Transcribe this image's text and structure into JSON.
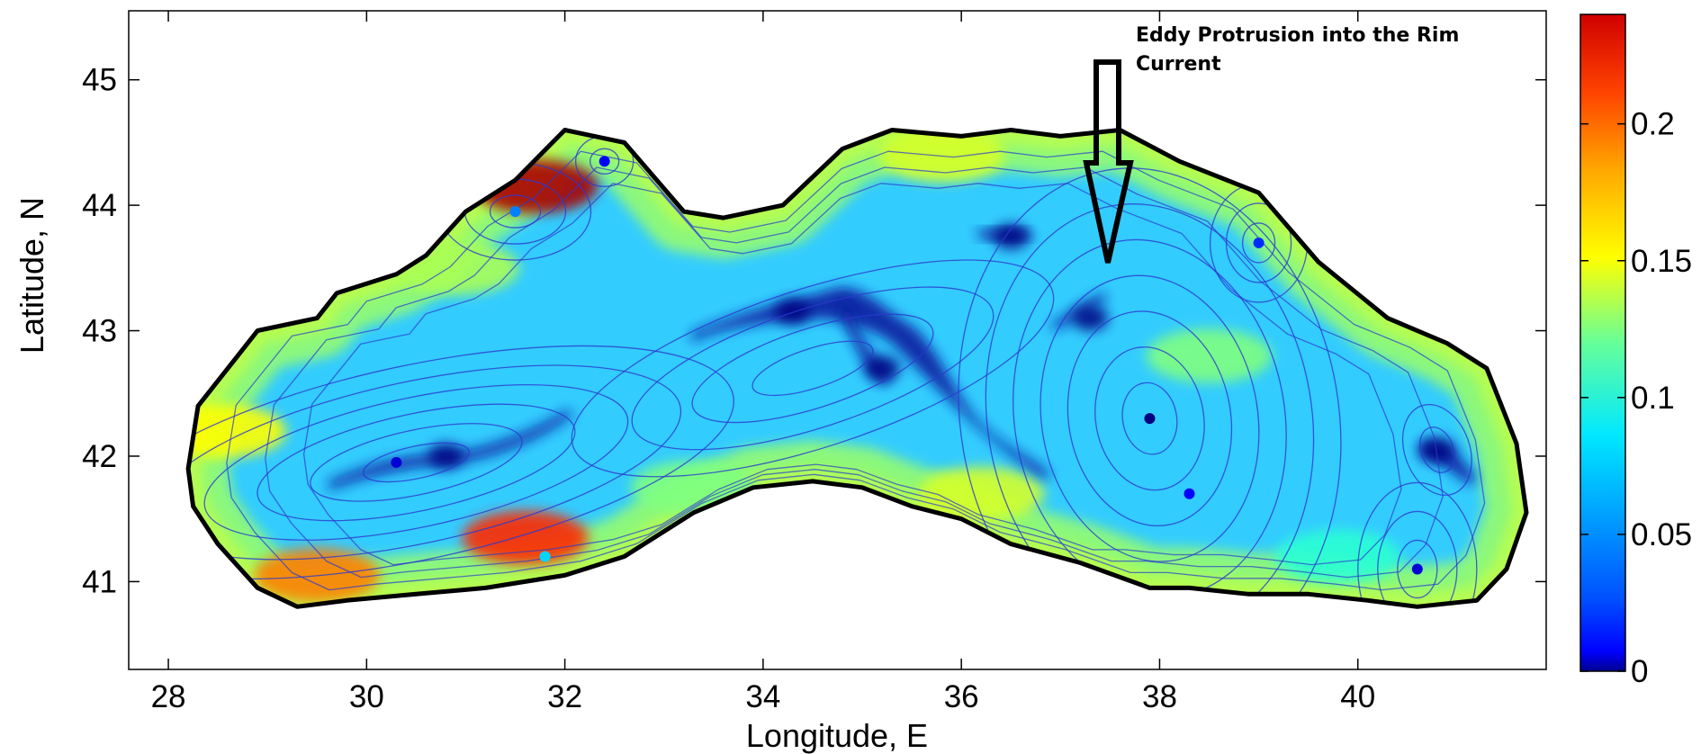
{
  "chart_data": {
    "type": "heatmap",
    "title": "",
    "xlabel": "Longitude, E",
    "ylabel": "Latitude, N",
    "xlim": [
      27.6,
      41.9
    ],
    "ylim": [
      40.3,
      45.55
    ],
    "xticks": [
      28,
      30,
      32,
      34,
      36,
      38,
      40
    ],
    "yticks": [
      41,
      42,
      43,
      44,
      45
    ],
    "xtick_labels": [
      "28",
      "30",
      "32",
      "34",
      "36",
      "38",
      "40"
    ],
    "ytick_labels": [
      "41",
      "42",
      "43",
      "44",
      "45"
    ],
    "colorbar": {
      "range": [
        0,
        0.24
      ],
      "ticks": [
        0,
        0.05,
        0.1,
        0.15,
        0.2
      ],
      "tick_labels": [
        "0",
        "0.05",
        "0.1",
        "0.15",
        "0.2"
      ],
      "colormap": "jet",
      "position": "right"
    },
    "grid": false,
    "overlay": "streamlines",
    "annotation": {
      "text_line1": "Eddy Protrusion into the Rim",
      "text_line2": "Current",
      "arrow_tip": [
        37.5,
        43.5
      ]
    },
    "coastline": [
      [
        28.2,
        41.9
      ],
      [
        28.3,
        42.4
      ],
      [
        28.6,
        42.7
      ],
      [
        28.9,
        43.0
      ],
      [
        29.5,
        43.1
      ],
      [
        29.7,
        43.3
      ],
      [
        30.3,
        43.45
      ],
      [
        30.6,
        43.6
      ],
      [
        31.0,
        43.95
      ],
      [
        31.5,
        44.2
      ],
      [
        32.0,
        44.6
      ],
      [
        32.6,
        44.5
      ],
      [
        33.2,
        43.95
      ],
      [
        33.6,
        43.9
      ],
      [
        34.2,
        44.0
      ],
      [
        34.8,
        44.45
      ],
      [
        35.3,
        44.6
      ],
      [
        36.0,
        44.55
      ],
      [
        36.5,
        44.6
      ],
      [
        37.0,
        44.55
      ],
      [
        37.6,
        44.6
      ],
      [
        38.2,
        44.35
      ],
      [
        39.0,
        44.1
      ],
      [
        39.6,
        43.55
      ],
      [
        40.3,
        43.1
      ],
      [
        40.9,
        42.9
      ],
      [
        41.3,
        42.7
      ],
      [
        41.6,
        42.1
      ],
      [
        41.7,
        41.55
      ],
      [
        41.5,
        41.1
      ],
      [
        41.2,
        40.85
      ],
      [
        40.6,
        40.8
      ],
      [
        40.1,
        40.85
      ],
      [
        39.5,
        40.9
      ],
      [
        38.9,
        40.9
      ],
      [
        38.3,
        40.95
      ],
      [
        37.9,
        40.95
      ],
      [
        37.2,
        41.15
      ],
      [
        36.5,
        41.3
      ],
      [
        36.0,
        41.5
      ],
      [
        35.5,
        41.6
      ],
      [
        35.0,
        41.75
      ],
      [
        34.5,
        41.8
      ],
      [
        33.9,
        41.75
      ],
      [
        33.3,
        41.55
      ],
      [
        32.6,
        41.2
      ],
      [
        32.0,
        41.05
      ],
      [
        31.2,
        40.95
      ],
      [
        30.5,
        40.9
      ],
      [
        29.8,
        40.85
      ],
      [
        29.3,
        40.8
      ],
      [
        28.9,
        40.95
      ],
      [
        28.5,
        41.3
      ],
      [
        28.25,
        41.6
      ]
    ],
    "high_speed_regions": [
      {
        "x": 31.7,
        "y": 44.15,
        "value": 0.23
      },
      {
        "x": 31.6,
        "y": 41.35,
        "value": 0.2
      },
      {
        "x": 29.5,
        "y": 41.05,
        "value": 0.18
      },
      {
        "x": 28.55,
        "y": 42.2,
        "value": 0.15
      },
      {
        "x": 35.8,
        "y": 44.4,
        "value": 0.14
      },
      {
        "x": 38.5,
        "y": 42.8,
        "value": 0.12
      },
      {
        "x": 36.2,
        "y": 41.7,
        "value": 0.14
      },
      {
        "x": 33.3,
        "y": 41.75,
        "value": 0.12
      },
      {
        "x": 30.9,
        "y": 43.5,
        "value": 0.13
      },
      {
        "x": 39.8,
        "y": 41.2,
        "value": 0.1
      }
    ],
    "low_speed_regions": [
      {
        "x": 35.2,
        "y": 42.7,
        "value": 0.0
      },
      {
        "x": 34.3,
        "y": 43.15,
        "value": 0.0
      },
      {
        "x": 30.8,
        "y": 42.0,
        "value": 0.0
      },
      {
        "x": 36.5,
        "y": 43.75,
        "value": 0.0
      },
      {
        "x": 37.3,
        "y": 43.1,
        "value": 0.0
      },
      {
        "x": 40.8,
        "y": 42.05,
        "value": 0.0
      }
    ],
    "eddy_centers": [
      {
        "x": 37.9,
        "y": 42.3,
        "value": 0.0
      },
      {
        "x": 40.6,
        "y": 41.1,
        "value": 0.02
      },
      {
        "x": 30.3,
        "y": 41.95,
        "value": 0.02
      },
      {
        "x": 32.4,
        "y": 44.35,
        "value": 0.03
      },
      {
        "x": 31.5,
        "y": 43.95,
        "value": 0.06
      },
      {
        "x": 39.0,
        "y": 43.7,
        "value": 0.04
      },
      {
        "x": 38.3,
        "y": 41.7,
        "value": 0.03
      },
      {
        "x": 31.8,
        "y": 41.2,
        "value": 0.08
      }
    ]
  }
}
